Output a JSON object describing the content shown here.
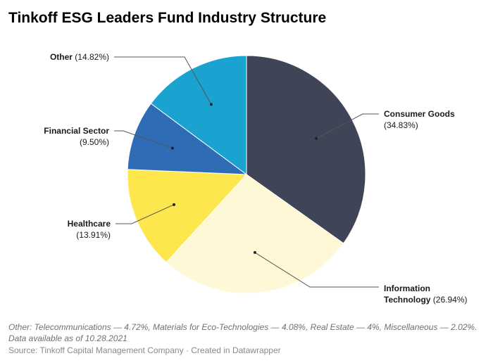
{
  "title": "Tinkoff ESG Leaders Fund Industry Structure",
  "note": "Other: Telecommunications — 4.72%, Materials for Eco-Technologies — 4.08%, Real Estate — 4%, Miscellaneous — 2.02%. Data available as of 10.28.2021",
  "source": "Source: Tinkoff Capital Management Company · Created in Datawrapper",
  "chart_data": {
    "type": "pie",
    "title": "Tinkoff ESG Leaders Fund Industry Structure",
    "slices": [
      {
        "label": "Consumer Goods",
        "percent_label": "(34.83%)",
        "value": 34.83,
        "color": "#3f4556"
      },
      {
        "label": "Information Technology",
        "percent_label": "(26.94%)",
        "value": 26.94,
        "color": "#fff8d6"
      },
      {
        "label": "Healthcare",
        "percent_label": "(13.91%)",
        "value": 13.91,
        "color": "#fde74c"
      },
      {
        "label": "Financial Sector",
        "percent_label": "(9.50%)",
        "value": 9.5,
        "color": "#2e6db5"
      },
      {
        "label": "Other",
        "percent_label": "(14.82%)",
        "value": 14.82,
        "color": "#1aa3d0"
      }
    ]
  }
}
